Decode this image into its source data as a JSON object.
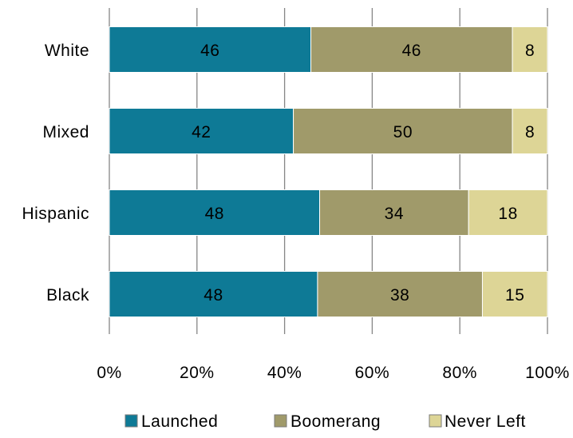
{
  "chart_data": {
    "type": "bar",
    "orientation": "horizontal",
    "stacked": true,
    "percent_scale": true,
    "categories": [
      "White",
      "Mixed",
      "Hispanic",
      "Black"
    ],
    "series": [
      {
        "name": "Launched",
        "color": "#0E7A96",
        "values": [
          46,
          42,
          48,
          48
        ]
      },
      {
        "name": "Boomerang",
        "color": "#A09A6A",
        "values": [
          46,
          50,
          34,
          38
        ]
      },
      {
        "name": "Never Left",
        "color": "#DDD596",
        "values": [
          8,
          8,
          18,
          15
        ]
      }
    ],
    "x_ticks": [
      "0%",
      "20%",
      "40%",
      "60%",
      "80%",
      "100%"
    ],
    "xlim": [
      0,
      100
    ],
    "grid": "vertical",
    "legend_position": "bottom"
  }
}
